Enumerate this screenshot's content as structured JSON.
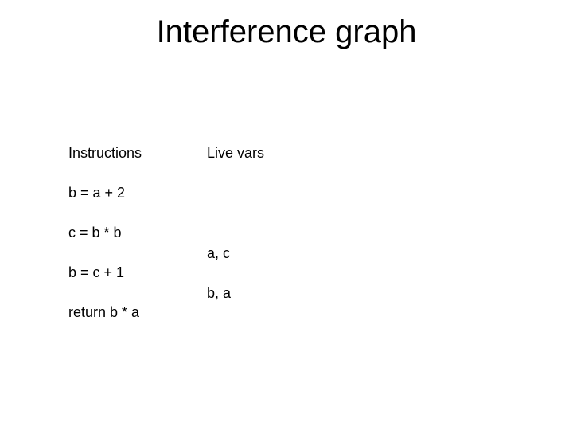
{
  "title": "Interference graph",
  "headers": {
    "left": "Instructions",
    "right": "Live vars"
  },
  "instructions": [
    "b = a + 2",
    "c = b * b",
    "b = c + 1",
    "return b * a"
  ],
  "livevars": {
    "between_2_3": "a, c",
    "between_3_4": "b, a"
  },
  "style": {
    "background_color": "#ffffff",
    "text_color": "#000000",
    "title_fontsize": 40,
    "body_fontsize": 18,
    "font_family": "Arial"
  }
}
